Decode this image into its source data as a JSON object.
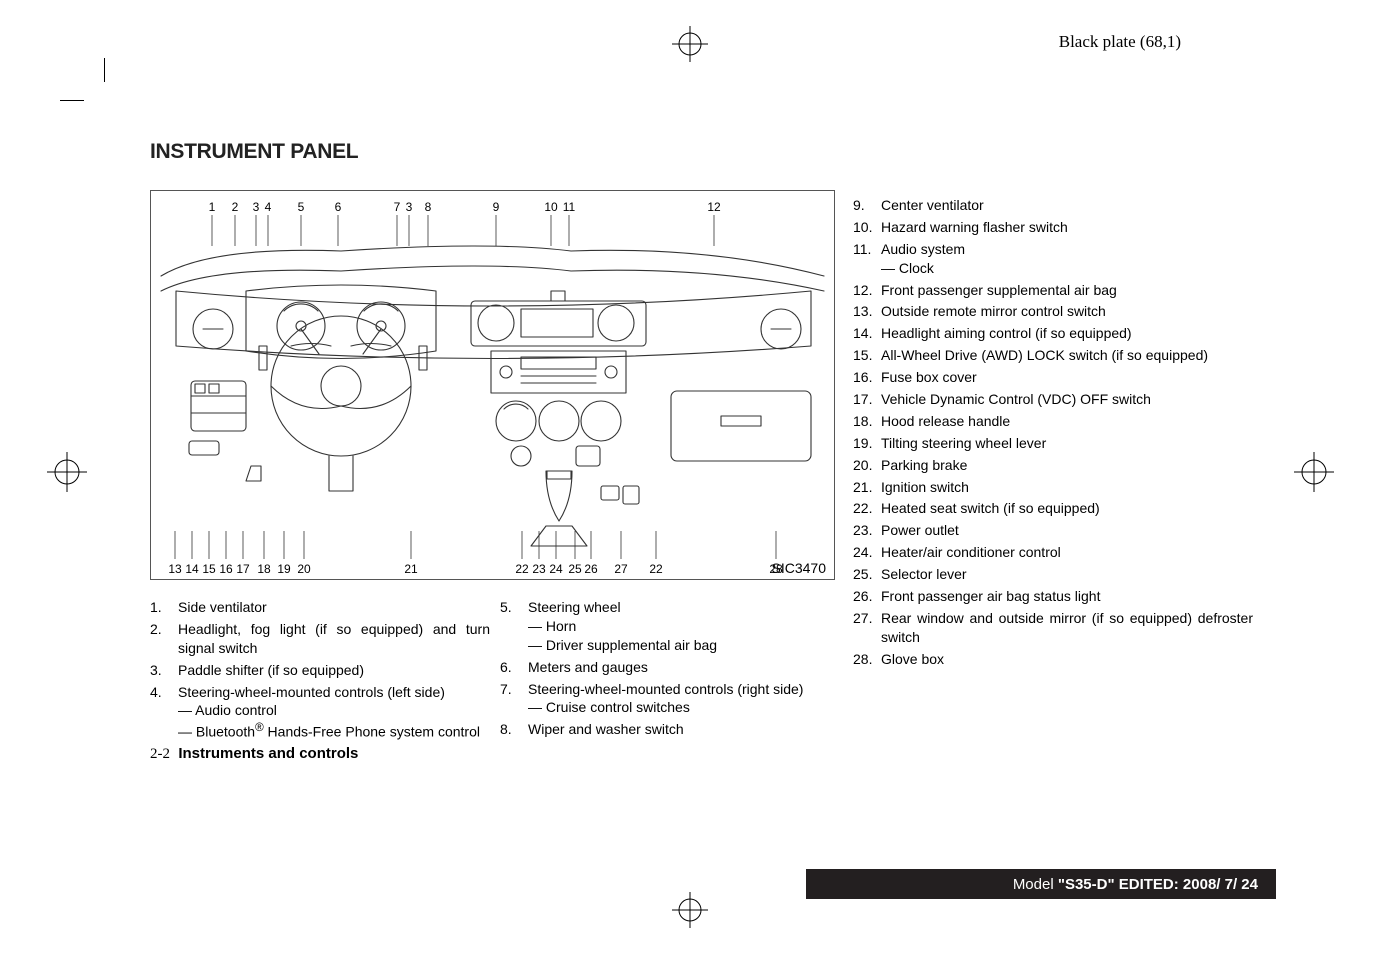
{
  "plate_label": "Black plate (68,1)",
  "section_title": "INSTRUMENT PANEL",
  "diagram": {
    "image_id": "SIC3470",
    "top_labels": [
      "1",
      "2",
      "3",
      "4",
      "5",
      "6",
      "7",
      "3",
      "8",
      "9",
      "10",
      "11",
      "12"
    ],
    "top_x": [
      61,
      84,
      105,
      117,
      150,
      187,
      246,
      258,
      277,
      345,
      400,
      418,
      563
    ],
    "bottom_labels": [
      "13",
      "14",
      "15",
      "16",
      "17",
      "18",
      "19",
      "20",
      "21",
      "22",
      "23",
      "24",
      "25",
      "26",
      "27",
      "22",
      "28"
    ],
    "bottom_x": [
      24,
      41,
      58,
      75,
      92,
      113,
      133,
      153,
      260,
      371,
      388,
      405,
      424,
      440,
      470,
      505,
      625
    ],
    "label_fontsize": 12,
    "label_color": "#000000",
    "stroke_color": "#333333",
    "background": "#ffffff"
  },
  "columns": {
    "a": [
      {
        "n": "1.",
        "text": "Side ventilator"
      },
      {
        "n": "2.",
        "text": "Headlight, fog light (if so equipped) and turn signal switch",
        "justify": true
      },
      {
        "n": "3.",
        "text": "Paddle shifter (if so equipped)"
      },
      {
        "n": "4.",
        "text": "Steering-wheel-mounted controls (left side)",
        "subs": [
          "— Audio control",
          "— Bluetooth<sup>®</sup> Hands-Free Phone system control"
        ]
      }
    ],
    "b": [
      {
        "n": "5.",
        "text": "Steering wheel",
        "subs": [
          "— Horn",
          "— Driver supplemental air bag"
        ]
      },
      {
        "n": "6.",
        "text": "Meters and gauges"
      },
      {
        "n": "7.",
        "text": "Steering-wheel-mounted controls (right side)",
        "subs": [
          "— Cruise control switches"
        ]
      },
      {
        "n": "8.",
        "text": "Wiper and washer switch"
      }
    ],
    "c": [
      {
        "n": "9.",
        "text": "Center ventilator"
      },
      {
        "n": "10.",
        "text": "Hazard warning flasher switch"
      },
      {
        "n": "11.",
        "text": "Audio system",
        "subs": [
          "— Clock"
        ]
      },
      {
        "n": "12.",
        "text": "Front passenger supplemental air bag"
      },
      {
        "n": "13.",
        "text": "Outside remote mirror control switch"
      },
      {
        "n": "14.",
        "text": "Headlight aiming control (if so equipped)"
      },
      {
        "n": "15.",
        "text": "All-Wheel Drive (AWD) LOCK switch (if so equipped)",
        "justify": true
      },
      {
        "n": "16.",
        "text": "Fuse box cover"
      },
      {
        "n": "17.",
        "text": "Vehicle Dynamic Control (VDC) OFF switch"
      },
      {
        "n": "18.",
        "text": "Hood release handle"
      },
      {
        "n": "19.",
        "text": "Tilting steering wheel lever"
      },
      {
        "n": "20.",
        "text": "Parking brake"
      },
      {
        "n": "21.",
        "text": "Ignition switch"
      },
      {
        "n": "22.",
        "text": "Heated seat switch (if so equipped)"
      },
      {
        "n": "23.",
        "text": "Power outlet"
      },
      {
        "n": "24.",
        "text": "Heater/air conditioner control"
      },
      {
        "n": "25.",
        "text": "Selector lever"
      },
      {
        "n": "26.",
        "text": "Front passenger air bag status light"
      },
      {
        "n": "27.",
        "text": "Rear window and outside mirror (if so equipped) defroster switch",
        "justify": true
      },
      {
        "n": "28.",
        "text": "Glove box"
      }
    ]
  },
  "footer_left": {
    "page": "2-2",
    "title": "Instruments and controls"
  },
  "footer_bar": {
    "prefix": "Model ",
    "model": "\"S35-D\"",
    "suffix": "  EDITED:  2008/ 7/ 24"
  }
}
